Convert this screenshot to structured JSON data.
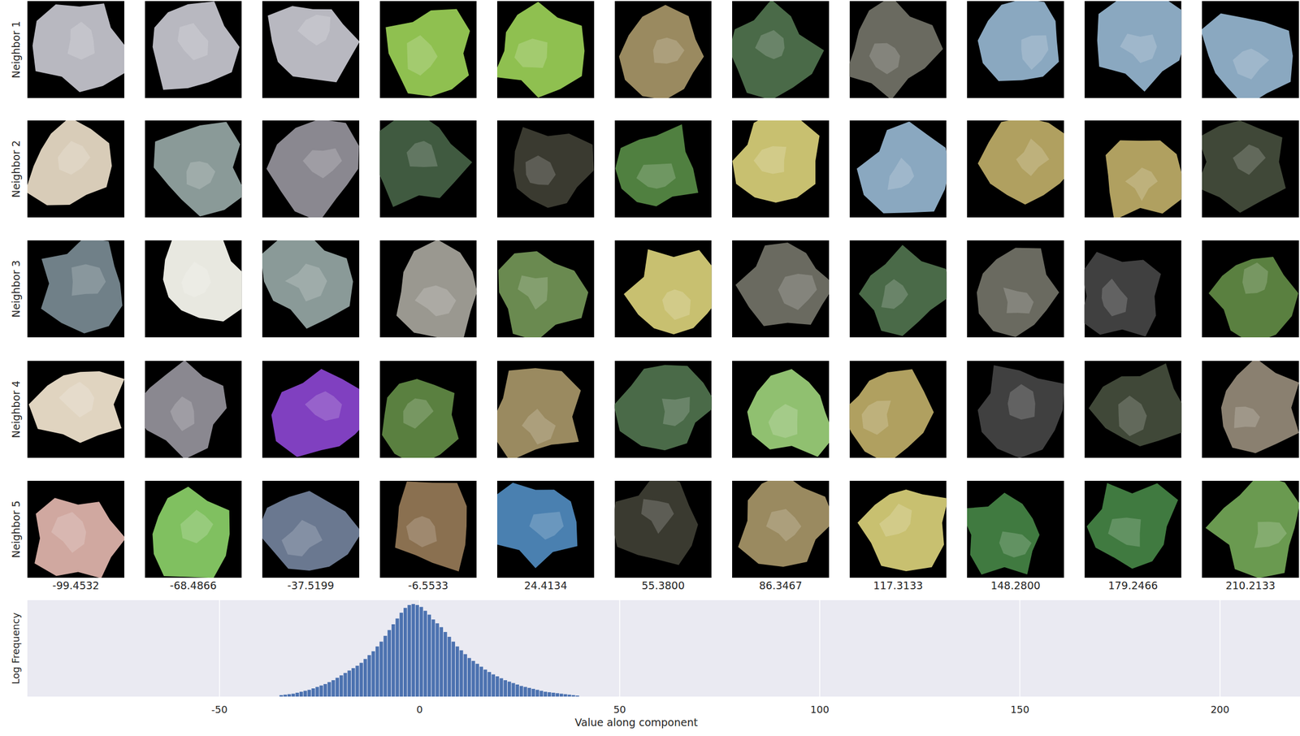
{
  "chart_data": {
    "type": "histogram",
    "x_label": "Value along component",
    "y_label": "Log Frequency",
    "bins": [
      -35,
      -34,
      -33,
      -32,
      -31,
      -30,
      -29,
      -28,
      -27,
      -26,
      -25,
      -24,
      -23,
      -22,
      -21,
      -20,
      -19,
      -18,
      -17,
      -16,
      -15,
      -14,
      -13,
      -12,
      -11,
      -10,
      -9,
      -8,
      -7,
      -6,
      -5,
      -4,
      -3,
      -2,
      -1,
      0,
      1,
      2,
      3,
      4,
      5,
      6,
      7,
      8,
      9,
      10,
      11,
      12,
      13,
      14,
      15,
      16,
      17,
      18,
      19,
      20,
      21,
      22,
      23,
      24,
      25,
      26,
      27,
      28,
      29,
      30,
      31,
      32,
      33,
      34,
      35,
      36,
      37,
      38,
      39,
      40
    ],
    "values": [
      1.5,
      2,
      2.5,
      3,
      4,
      5,
      6,
      7,
      8.5,
      10,
      11.5,
      13,
      15,
      17,
      19.5,
      22,
      24.5,
      27,
      29.5,
      32,
      35,
      39,
      43,
      47,
      52,
      57,
      63,
      69,
      75,
      81,
      87,
      92,
      95,
      96,
      95,
      93,
      89,
      85,
      80,
      76,
      72,
      67,
      62,
      57,
      52,
      48,
      44,
      40,
      37,
      34,
      31,
      28,
      25.5,
      23,
      21,
      19,
      17,
      15.5,
      14,
      12.5,
      11,
      10,
      9,
      8,
      7,
      6,
      5,
      4.5,
      4,
      3.5,
      3,
      2.5,
      2,
      1.5,
      1
    ],
    "color": "#4c72b0",
    "xlim": [
      -98,
      220
    ],
    "ylim": [
      0,
      100
    ],
    "xticks": [
      -50,
      0,
      50,
      100,
      150,
      200
    ],
    "grid": true,
    "tick_labels": "x"
  },
  "neighbors": {
    "row_labels": [
      "Neighbor 1",
      "Neighbor 2",
      "Neighbor 3",
      "Neighbor 4",
      "Neighbor 5"
    ],
    "column_values": [
      "-99.4532",
      "-68.4866",
      "-37.5199",
      "-6.5533",
      "24.4134",
      "55.3800",
      "86.3467",
      "117.3133",
      "148.2800",
      "179.2466",
      "210.2133"
    ]
  }
}
